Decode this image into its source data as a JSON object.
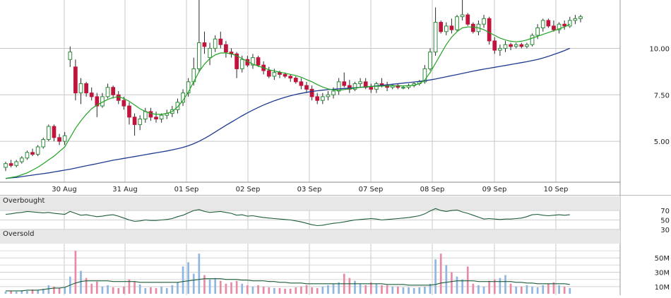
{
  "chart_data": [
    {
      "type": "candlestick",
      "panel": "price",
      "x_labels": [
        "30 Aug",
        "31 Aug",
        "01 Sep",
        "02 Sep",
        "03 Sep",
        "07 Sep",
        "08 Sep",
        "09 Sep",
        "10 Sep"
      ],
      "y_ticks": [
        "10.00",
        "7.50",
        "5.00"
      ],
      "y_tick_values": [
        10.0,
        7.5,
        5.0
      ],
      "ylim": [
        2.8,
        12.6
      ],
      "grid": true,
      "colors": {
        "up": "#2e8b3a",
        "down": "#c0143c",
        "ma_fast": "#22a322",
        "ma_slow": "#1f3a8f"
      },
      "candles": [
        {
          "o": 3.6,
          "h": 3.9,
          "l": 3.4,
          "c": 3.8
        },
        {
          "o": 3.8,
          "h": 4.0,
          "l": 3.6,
          "c": 3.7
        },
        {
          "o": 3.7,
          "h": 4.0,
          "l": 3.6,
          "c": 3.9
        },
        {
          "o": 3.9,
          "h": 4.2,
          "l": 3.8,
          "c": 4.1
        },
        {
          "o": 4.1,
          "h": 4.5,
          "l": 4.0,
          "c": 4.4
        },
        {
          "o": 4.4,
          "h": 4.6,
          "l": 4.2,
          "c": 4.3
        },
        {
          "o": 4.3,
          "h": 4.8,
          "l": 4.2,
          "c": 4.7
        },
        {
          "o": 4.7,
          "h": 5.2,
          "l": 4.6,
          "c": 5.1
        },
        {
          "o": 5.1,
          "h": 5.9,
          "l": 5.0,
          "c": 5.8
        },
        {
          "o": 5.8,
          "h": 5.9,
          "l": 5.0,
          "c": 5.2
        },
        {
          "o": 5.2,
          "h": 5.4,
          "l": 4.8,
          "c": 5.0
        },
        {
          "o": 5.0,
          "h": 5.5,
          "l": 4.8,
          "c": 5.3
        },
        {
          "o": 9.4,
          "h": 10.1,
          "l": 9.0,
          "c": 9.8
        },
        {
          "o": 9.0,
          "h": 9.4,
          "l": 7.2,
          "c": 7.6
        },
        {
          "o": 7.6,
          "h": 8.4,
          "l": 7.0,
          "c": 8.1
        },
        {
          "o": 8.1,
          "h": 8.2,
          "l": 7.4,
          "c": 7.6
        },
        {
          "o": 7.6,
          "h": 7.9,
          "l": 7.2,
          "c": 7.4
        },
        {
          "o": 7.4,
          "h": 7.6,
          "l": 6.3,
          "c": 6.9
        },
        {
          "o": 6.9,
          "h": 7.6,
          "l": 6.8,
          "c": 7.4
        },
        {
          "o": 7.4,
          "h": 8.1,
          "l": 7.3,
          "c": 7.9
        },
        {
          "o": 7.9,
          "h": 8.0,
          "l": 7.3,
          "c": 7.5
        },
        {
          "o": 7.5,
          "h": 7.7,
          "l": 7.0,
          "c": 7.2
        },
        {
          "o": 7.2,
          "h": 7.4,
          "l": 6.7,
          "c": 6.9
        },
        {
          "o": 6.9,
          "h": 7.1,
          "l": 5.9,
          "c": 6.3
        },
        {
          "o": 6.3,
          "h": 6.5,
          "l": 5.3,
          "c": 5.9
        },
        {
          "o": 5.9,
          "h": 6.4,
          "l": 5.6,
          "c": 6.2
        },
        {
          "o": 6.2,
          "h": 6.8,
          "l": 6.0,
          "c": 6.6
        },
        {
          "o": 6.6,
          "h": 6.8,
          "l": 6.1,
          "c": 6.3
        },
        {
          "o": 6.3,
          "h": 6.6,
          "l": 6.0,
          "c": 6.2
        },
        {
          "o": 6.2,
          "h": 6.5,
          "l": 6.0,
          "c": 6.4
        },
        {
          "o": 6.4,
          "h": 6.7,
          "l": 6.2,
          "c": 6.5
        },
        {
          "o": 6.5,
          "h": 6.9,
          "l": 6.3,
          "c": 6.7
        },
        {
          "o": 6.7,
          "h": 7.3,
          "l": 6.5,
          "c": 7.1
        },
        {
          "o": 7.1,
          "h": 7.8,
          "l": 6.9,
          "c": 7.6
        },
        {
          "o": 7.6,
          "h": 8.4,
          "l": 7.4,
          "c": 8.2
        },
        {
          "o": 8.2,
          "h": 9.5,
          "l": 8.0,
          "c": 8.9
        },
        {
          "o": 8.9,
          "h": 12.6,
          "l": 8.7,
          "c": 10.3
        },
        {
          "o": 10.3,
          "h": 10.9,
          "l": 9.7,
          "c": 10.1
        },
        {
          "o": 9.5,
          "h": 10.3,
          "l": 9.1,
          "c": 10.0
        },
        {
          "o": 10.0,
          "h": 10.7,
          "l": 9.8,
          "c": 10.5
        },
        {
          "o": 10.5,
          "h": 10.9,
          "l": 10.0,
          "c": 10.2
        },
        {
          "o": 10.2,
          "h": 10.4,
          "l": 9.5,
          "c": 9.8
        },
        {
          "o": 9.8,
          "h": 10.0,
          "l": 9.5,
          "c": 9.7
        },
        {
          "o": 9.7,
          "h": 9.8,
          "l": 8.4,
          "c": 8.9
        },
        {
          "o": 8.9,
          "h": 9.6,
          "l": 8.7,
          "c": 9.4
        },
        {
          "o": 9.4,
          "h": 9.6,
          "l": 9.0,
          "c": 9.1
        },
        {
          "o": 9.1,
          "h": 9.7,
          "l": 8.9,
          "c": 9.5
        },
        {
          "o": 9.5,
          "h": 9.6,
          "l": 9.0,
          "c": 9.1
        },
        {
          "o": 9.1,
          "h": 9.3,
          "l": 8.6,
          "c": 8.8
        },
        {
          "o": 8.8,
          "h": 9.0,
          "l": 8.4,
          "c": 8.5
        },
        {
          "o": 8.5,
          "h": 8.9,
          "l": 8.3,
          "c": 8.7
        },
        {
          "o": 8.7,
          "h": 8.8,
          "l": 8.4,
          "c": 8.6
        },
        {
          "o": 8.6,
          "h": 8.7,
          "l": 8.4,
          "c": 8.5
        },
        {
          "o": 8.5,
          "h": 8.6,
          "l": 8.2,
          "c": 8.4
        },
        {
          "o": 8.4,
          "h": 8.5,
          "l": 8.1,
          "c": 8.2
        },
        {
          "o": 8.2,
          "h": 8.4,
          "l": 7.8,
          "c": 8.0
        },
        {
          "o": 8.0,
          "h": 8.2,
          "l": 7.6,
          "c": 7.8
        },
        {
          "o": 7.8,
          "h": 8.0,
          "l": 7.2,
          "c": 7.4
        },
        {
          "o": 7.4,
          "h": 7.6,
          "l": 7.0,
          "c": 7.2
        },
        {
          "o": 7.2,
          "h": 7.6,
          "l": 7.0,
          "c": 7.4
        },
        {
          "o": 7.4,
          "h": 7.7,
          "l": 7.2,
          "c": 7.5
        },
        {
          "o": 7.5,
          "h": 7.9,
          "l": 7.3,
          "c": 7.7
        },
        {
          "o": 7.7,
          "h": 8.4,
          "l": 7.5,
          "c": 8.2
        },
        {
          "o": 8.2,
          "h": 8.7,
          "l": 7.9,
          "c": 8.0
        },
        {
          "o": 8.0,
          "h": 8.3,
          "l": 7.6,
          "c": 7.8
        },
        {
          "o": 7.8,
          "h": 8.2,
          "l": 7.7,
          "c": 8.1
        },
        {
          "o": 8.1,
          "h": 8.4,
          "l": 7.9,
          "c": 8.2
        },
        {
          "o": 8.2,
          "h": 8.4,
          "l": 7.8,
          "c": 7.9
        },
        {
          "o": 7.9,
          "h": 8.1,
          "l": 7.6,
          "c": 7.8
        },
        {
          "o": 7.8,
          "h": 8.2,
          "l": 7.6,
          "c": 8.1
        },
        {
          "o": 8.1,
          "h": 8.4,
          "l": 7.9,
          "c": 8.0
        },
        {
          "o": 8.0,
          "h": 8.2,
          "l": 7.7,
          "c": 7.9
        },
        {
          "o": 7.9,
          "h": 8.1,
          "l": 7.8,
          "c": 8.0
        },
        {
          "o": 8.0,
          "h": 8.1,
          "l": 7.8,
          "c": 7.9
        },
        {
          "o": 7.9,
          "h": 8.0,
          "l": 7.8,
          "c": 7.9
        },
        {
          "o": 7.9,
          "h": 8.1,
          "l": 7.8,
          "c": 8.0
        },
        {
          "o": 8.0,
          "h": 8.2,
          "l": 7.9,
          "c": 8.1
        },
        {
          "o": 8.1,
          "h": 8.3,
          "l": 8.0,
          "c": 8.2
        },
        {
          "o": 8.2,
          "h": 9.1,
          "l": 8.1,
          "c": 8.9
        },
        {
          "o": 8.9,
          "h": 10.0,
          "l": 8.8,
          "c": 9.8
        },
        {
          "o": 9.8,
          "h": 12.2,
          "l": 9.6,
          "c": 11.4
        },
        {
          "o": 11.4,
          "h": 11.5,
          "l": 10.8,
          "c": 10.9
        },
        {
          "o": 10.9,
          "h": 11.4,
          "l": 10.7,
          "c": 11.2
        },
        {
          "o": 11.2,
          "h": 11.6,
          "l": 10.8,
          "c": 11.0
        },
        {
          "o": 11.0,
          "h": 11.8,
          "l": 10.9,
          "c": 11.7
        },
        {
          "o": 11.7,
          "h": 12.6,
          "l": 11.5,
          "c": 11.8
        },
        {
          "o": 11.8,
          "h": 11.9,
          "l": 11.2,
          "c": 11.3
        },
        {
          "o": 11.3,
          "h": 11.4,
          "l": 10.8,
          "c": 10.9
        },
        {
          "o": 10.9,
          "h": 11.5,
          "l": 10.7,
          "c": 11.3
        },
        {
          "o": 11.3,
          "h": 11.8,
          "l": 11.1,
          "c": 11.6
        },
        {
          "o": 11.6,
          "h": 11.7,
          "l": 10.2,
          "c": 10.4
        },
        {
          "o": 10.4,
          "h": 10.6,
          "l": 9.7,
          "c": 9.9
        },
        {
          "o": 9.9,
          "h": 10.2,
          "l": 9.6,
          "c": 10.0
        },
        {
          "o": 10.0,
          "h": 10.4,
          "l": 9.8,
          "c": 10.2
        },
        {
          "o": 10.2,
          "h": 10.3,
          "l": 9.9,
          "c": 10.1
        },
        {
          "o": 10.1,
          "h": 10.3,
          "l": 10.0,
          "c": 10.2
        },
        {
          "o": 10.2,
          "h": 10.3,
          "l": 10.0,
          "c": 10.1
        },
        {
          "o": 10.1,
          "h": 10.3,
          "l": 10.0,
          "c": 10.2
        },
        {
          "o": 10.2,
          "h": 10.8,
          "l": 10.1,
          "c": 10.7
        },
        {
          "o": 10.7,
          "h": 11.3,
          "l": 10.5,
          "c": 11.1
        },
        {
          "o": 11.1,
          "h": 11.6,
          "l": 10.9,
          "c": 11.5
        },
        {
          "o": 11.5,
          "h": 11.6,
          "l": 11.1,
          "c": 11.2
        },
        {
          "o": 11.2,
          "h": 11.5,
          "l": 10.9,
          "c": 11.0
        },
        {
          "o": 11.0,
          "h": 11.4,
          "l": 10.8,
          "c": 11.3
        },
        {
          "o": 11.3,
          "h": 11.5,
          "l": 11.0,
          "c": 11.2
        },
        {
          "o": 11.2,
          "h": 11.7,
          "l": 11.1,
          "c": 11.5
        },
        {
          "o": 11.5,
          "h": 11.8,
          "l": 11.3,
          "c": 11.6
        },
        {
          "o": 11.6,
          "h": 11.8,
          "l": 11.4,
          "c": 11.7
        }
      ],
      "ma_fast": [
        3.0,
        3.05,
        3.1,
        3.2,
        3.3,
        3.45,
        3.6,
        3.8,
        4.0,
        4.2,
        4.45,
        4.7,
        5.2,
        5.7,
        6.1,
        6.45,
        6.75,
        6.95,
        7.1,
        7.25,
        7.35,
        7.4,
        7.3,
        7.15,
        6.95,
        6.75,
        6.6,
        6.5,
        6.45,
        6.45,
        6.5,
        6.6,
        6.85,
        7.2,
        7.65,
        8.2,
        8.75,
        9.15,
        9.45,
        9.65,
        9.75,
        9.75,
        9.7,
        9.6,
        9.45,
        9.3,
        9.15,
        9.05,
        8.95,
        8.85,
        8.78,
        8.72,
        8.66,
        8.6,
        8.54,
        8.45,
        8.32,
        8.2,
        8.05,
        7.92,
        7.82,
        7.76,
        7.75,
        7.78,
        7.82,
        7.86,
        7.9,
        7.93,
        7.95,
        7.96,
        7.97,
        7.98,
        7.98,
        7.98,
        7.98,
        7.99,
        8.02,
        8.1,
        8.3,
        8.7,
        9.2,
        9.7,
        10.2,
        10.6,
        10.9,
        11.1,
        11.15,
        11.15,
        11.1,
        11.0,
        10.85,
        10.7,
        10.55,
        10.45,
        10.38,
        10.35,
        10.38,
        10.45,
        10.55,
        10.65,
        10.75,
        10.85,
        10.95,
        11.05,
        11.15,
        11.3
      ],
      "ma_slow": [
        3.0,
        3.03,
        3.06,
        3.1,
        3.14,
        3.18,
        3.22,
        3.26,
        3.3,
        3.35,
        3.4,
        3.45,
        3.5,
        3.56,
        3.62,
        3.68,
        3.74,
        3.8,
        3.86,
        3.92,
        3.98,
        4.03,
        4.08,
        4.13,
        4.18,
        4.23,
        4.28,
        4.33,
        4.38,
        4.43,
        4.48,
        4.54,
        4.6,
        4.67,
        4.76,
        4.87,
        5.0,
        5.15,
        5.32,
        5.5,
        5.68,
        5.86,
        6.03,
        6.2,
        6.37,
        6.53,
        6.68,
        6.82,
        6.95,
        7.07,
        7.18,
        7.28,
        7.37,
        7.45,
        7.52,
        7.58,
        7.63,
        7.68,
        7.72,
        7.75,
        7.78,
        7.8,
        7.82,
        7.84,
        7.86,
        7.88,
        7.9,
        7.92,
        7.95,
        7.98,
        8.01,
        8.04,
        8.07,
        8.1,
        8.13,
        8.16,
        8.19,
        8.22,
        8.26,
        8.3,
        8.35,
        8.41,
        8.47,
        8.53,
        8.59,
        8.65,
        8.71,
        8.77,
        8.83,
        8.88,
        8.93,
        8.98,
        9.03,
        9.08,
        9.13,
        9.18,
        9.23,
        9.28,
        9.34,
        9.4,
        9.48,
        9.57,
        9.67,
        9.77,
        9.88,
        10.0
      ]
    },
    {
      "type": "line",
      "panel": "oscillator",
      "label_top": "Overbought",
      "label_bottom": "Oversold",
      "y_ticks": [
        "70",
        "50",
        "30"
      ],
      "y_tick_values": [
        70,
        50,
        30
      ],
      "ylim": [
        0,
        100
      ],
      "values": [
        62,
        63,
        65,
        66,
        68,
        67,
        66,
        65,
        66,
        64,
        63,
        62,
        68,
        64,
        60,
        61,
        59,
        57,
        58,
        60,
        61,
        58,
        54,
        50,
        47,
        48,
        50,
        49,
        49,
        50,
        51,
        53,
        57,
        60,
        65,
        70,
        72,
        68,
        66,
        67,
        68,
        66,
        64,
        60,
        61,
        58,
        59,
        57,
        55,
        54,
        53,
        52,
        51,
        50,
        48,
        46,
        43,
        40,
        38,
        39,
        41,
        43,
        44,
        46,
        48,
        50,
        51,
        52,
        53,
        52,
        50,
        51,
        52,
        53,
        54,
        55,
        57,
        59,
        63,
        69,
        74,
        70,
        68,
        70,
        71,
        67,
        64,
        60,
        56,
        52,
        53,
        52,
        51,
        52,
        52,
        53,
        54,
        57,
        61,
        62,
        60,
        59,
        60,
        61,
        60,
        61
      ]
    },
    {
      "type": "bar",
      "panel": "volume",
      "y_ticks": [
        "50M",
        "30M",
        "10M"
      ],
      "y_tick_values": [
        50,
        30,
        10
      ],
      "ylim": [
        0,
        65
      ],
      "unit": "M",
      "values": [
        3,
        4,
        3,
        5,
        4,
        6,
        5,
        7,
        12,
        10,
        8,
        9,
        24,
        60,
        32,
        22,
        14,
        17,
        10,
        12,
        9,
        8,
        10,
        20,
        17,
        13,
        8,
        9,
        8,
        10,
        8,
        12,
        16,
        38,
        44,
        28,
        56,
        26,
        20,
        22,
        18,
        14,
        16,
        18,
        14,
        12,
        10,
        12,
        10,
        9,
        8,
        8,
        7,
        7,
        9,
        10,
        12,
        9,
        8,
        10,
        12,
        14,
        16,
        28,
        22,
        18,
        14,
        12,
        16,
        14,
        12,
        12,
        10,
        10,
        9,
        9,
        8,
        9,
        10,
        14,
        48,
        56,
        40,
        30,
        24,
        20,
        38,
        14,
        12,
        10,
        18,
        20,
        22,
        26,
        14,
        10,
        10,
        12,
        10,
        9,
        12,
        14,
        16,
        12,
        10,
        8
      ],
      "ma": [
        4,
        4,
        4,
        4,
        5,
        5,
        5,
        6,
        7,
        8,
        8,
        9,
        12,
        15,
        17,
        18,
        18,
        18,
        18,
        18,
        17,
        17,
        17,
        17,
        17,
        16,
        16,
        16,
        16,
        16,
        16,
        16,
        16,
        17,
        18,
        19,
        20,
        21,
        21,
        21,
        21,
        20,
        20,
        20,
        19,
        19,
        18,
        18,
        18,
        17,
        17,
        16,
        16,
        15,
        15,
        15,
        14,
        14,
        14,
        14,
        14,
        14,
        14,
        14,
        14,
        14,
        14,
        14,
        14,
        14,
        14,
        13,
        13,
        13,
        13,
        12,
        12,
        12,
        12,
        12,
        13,
        15,
        16,
        17,
        18,
        18,
        18,
        18,
        17,
        17,
        17,
        17,
        17,
        17,
        17,
        16,
        16,
        15,
        15,
        14,
        14,
        14,
        14,
        14,
        14,
        13
      ]
    }
  ]
}
